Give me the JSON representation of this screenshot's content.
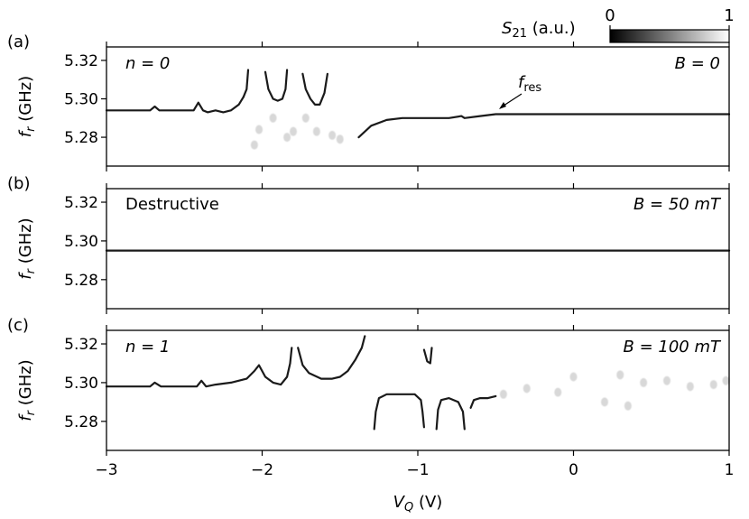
{
  "colorbar": {
    "label": "S₂₁ (a.u.)",
    "label_main": "S",
    "label_sub": "21",
    "label_rest": " (a.u.)",
    "min_label": "0",
    "max_label": "1",
    "cmap": [
      "#000000",
      "#ffffff"
    ]
  },
  "trace_color": "#1a1a1a",
  "xaxis": {
    "label_main": "V",
    "label_sub": "Q",
    "label_rest": " (V)",
    "ticks": [
      -3,
      -2,
      -1,
      0,
      1
    ],
    "tick_labels": [
      "−3",
      "−2",
      "−1",
      "0",
      "1"
    ],
    "range": [
      -3,
      1
    ]
  },
  "chart_data": [
    {
      "type": "heatmap",
      "panel": "(a)",
      "corner_left": "n = 0",
      "corner_right": "B = 0",
      "annotation": {
        "main": "f",
        "sub": "res",
        "at": [
          -0.5,
          5.292
        ]
      },
      "ylabel_main": "f",
      "ylabel_sub": "r",
      "ylabel_rest": " (GHz)",
      "ylim": [
        5.265,
        5.327
      ],
      "yticks": [
        5.28,
        5.3,
        5.32
      ],
      "ytick_labels": [
        "5.28",
        "5.30",
        "5.32"
      ],
      "series": [
        {
          "x": [
            -3.0,
            -2.85,
            -2.72,
            -2.69,
            -2.66,
            -2.6,
            -2.5,
            -2.44,
            -2.41,
            -2.38,
            -2.35,
            -2.3,
            -2.25,
            -2.2,
            -2.15,
            -2.12
          ],
          "y": [
            5.294,
            5.294,
            5.294,
            5.296,
            5.294,
            5.294,
            5.294,
            5.294,
            5.298,
            5.294,
            5.293,
            5.294,
            5.293,
            5.294,
            5.297,
            5.301
          ]
        },
        {
          "x": [
            -2.12,
            -2.1,
            -2.09
          ],
          "y": [
            5.301,
            5.305,
            5.315
          ]
        },
        {
          "x": [
            -1.98,
            -1.96,
            -1.93,
            -1.9,
            -1.87,
            -1.85,
            -1.84
          ],
          "y": [
            5.314,
            5.305,
            5.3,
            5.299,
            5.3,
            5.305,
            5.315
          ]
        },
        {
          "x": [
            -1.74,
            -1.72,
            -1.69,
            -1.66,
            -1.63,
            -1.6,
            -1.58
          ],
          "y": [
            5.313,
            5.305,
            5.3,
            5.297,
            5.297,
            5.303,
            5.313
          ]
        },
        {
          "x": [
            -1.38,
            -1.3,
            -1.2,
            -1.1,
            -1.0,
            -0.9,
            -0.8,
            -0.72,
            -0.7,
            -0.6,
            -0.5,
            -0.3,
            0.0,
            0.5,
            1.0
          ],
          "y": [
            5.28,
            5.286,
            5.289,
            5.29,
            5.29,
            5.29,
            5.29,
            5.291,
            5.29,
            5.291,
            5.292,
            5.292,
            5.292,
            5.292,
            5.292
          ]
        }
      ],
      "faint": [
        [
          -2.05,
          5.276
        ],
        [
          -2.02,
          5.284
        ],
        [
          -1.93,
          5.29
        ],
        [
          -1.84,
          5.28
        ],
        [
          -1.8,
          5.283
        ],
        [
          -1.72,
          5.29
        ],
        [
          -1.65,
          5.283
        ],
        [
          -1.55,
          5.281
        ],
        [
          -1.5,
          5.279
        ]
      ]
    },
    {
      "type": "heatmap",
      "panel": "(b)",
      "corner_left": "Destructive",
      "corner_right": "B = 50 mT",
      "ylabel_main": "f",
      "ylabel_sub": "r",
      "ylabel_rest": " (GHz)",
      "ylim": [
        5.265,
        5.327
      ],
      "yticks": [
        5.28,
        5.3,
        5.32
      ],
      "ytick_labels": [
        "5.28",
        "5.30",
        "5.32"
      ],
      "series": [
        {
          "x": [
            -3.0,
            -2.0,
            -1.0,
            0.0,
            1.0
          ],
          "y": [
            5.295,
            5.295,
            5.295,
            5.295,
            5.295
          ]
        }
      ],
      "faint": []
    },
    {
      "type": "heatmap",
      "panel": "(c)",
      "corner_left": "n = 1",
      "corner_right": "B = 100 mT",
      "ylabel_main": "f",
      "ylabel_sub": "r",
      "ylabel_rest": " (GHz)",
      "ylim": [
        5.265,
        5.327
      ],
      "yticks": [
        5.28,
        5.3,
        5.32
      ],
      "ytick_labels": [
        "5.28",
        "5.30",
        "5.32"
      ],
      "series": [
        {
          "x": [
            -3.0,
            -2.8,
            -2.72,
            -2.69,
            -2.65,
            -2.5,
            -2.42,
            -2.39,
            -2.36,
            -2.3,
            -2.2,
            -2.1,
            -2.05,
            -2.02,
            -1.98,
            -1.93,
            -1.88,
            -1.84,
            -1.82,
            -1.81
          ],
          "y": [
            5.298,
            5.298,
            5.298,
            5.3,
            5.298,
            5.298,
            5.298,
            5.301,
            5.298,
            5.299,
            5.3,
            5.302,
            5.306,
            5.309,
            5.303,
            5.3,
            5.299,
            5.303,
            5.31,
            5.318
          ]
        },
        {
          "x": [
            -1.77,
            -1.74,
            -1.7,
            -1.62,
            -1.55,
            -1.5,
            -1.45,
            -1.4,
            -1.36,
            -1.34
          ],
          "y": [
            5.318,
            5.309,
            5.305,
            5.302,
            5.302,
            5.303,
            5.306,
            5.312,
            5.318,
            5.324
          ]
        },
        {
          "x": [
            -1.28,
            -1.27,
            -1.25,
            -1.2,
            -1.1,
            -1.02,
            -0.98,
            -0.97,
            -0.96
          ],
          "y": [
            5.276,
            5.285,
            5.292,
            5.294,
            5.294,
            5.294,
            5.291,
            5.285,
            5.277
          ]
        },
        {
          "x": [
            -0.96,
            -0.94,
            -0.92,
            -0.91
          ],
          "y": [
            5.317,
            5.311,
            5.31,
            5.318
          ]
        },
        {
          "x": [
            -0.88,
            -0.87,
            -0.85,
            -0.8,
            -0.74,
            -0.71,
            -0.7
          ],
          "y": [
            5.276,
            5.286,
            5.291,
            5.292,
            5.29,
            5.285,
            5.276
          ]
        },
        {
          "x": [
            -0.66,
            -0.64,
            -0.6,
            -0.55,
            -0.5
          ],
          "y": [
            5.287,
            5.291,
            5.292,
            5.292,
            5.293
          ]
        }
      ],
      "faint": [
        [
          -0.45,
          5.294
        ],
        [
          -0.3,
          5.297
        ],
        [
          -0.1,
          5.295
        ],
        [
          0.0,
          5.303
        ],
        [
          0.3,
          5.304
        ],
        [
          0.45,
          5.3
        ],
        [
          0.6,
          5.301
        ],
        [
          0.75,
          5.298
        ],
        [
          0.9,
          5.299
        ],
        [
          0.98,
          5.301
        ],
        [
          0.35,
          5.288
        ],
        [
          0.2,
          5.29
        ]
      ]
    }
  ]
}
